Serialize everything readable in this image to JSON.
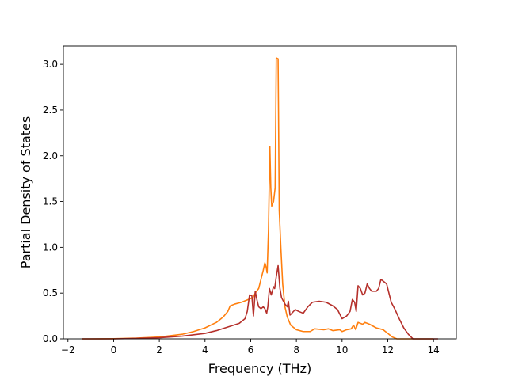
{
  "chart_data": {
    "type": "line",
    "title": "",
    "xlabel": "Frequency (THz)",
    "ylabel": "Partial Density of States",
    "xlim": [
      -2.2,
      15.0
    ],
    "ylim": [
      0.0,
      3.2
    ],
    "xticks": [
      -2,
      0,
      2,
      4,
      6,
      8,
      10,
      12,
      14
    ],
    "yticks": [
      0.0,
      0.5,
      1.0,
      1.5,
      2.0,
      2.5,
      3.0
    ],
    "xtick_labels": [
      "−2",
      "0",
      "2",
      "4",
      "6",
      "8",
      "10",
      "12",
      "14"
    ],
    "ytick_labels": [
      "0.0",
      "0.5",
      "1.0",
      "1.5",
      "2.0",
      "2.5",
      "3.0"
    ],
    "grid": false,
    "legend": "none",
    "series": [
      {
        "color": "#ff7f0e",
        "points": [
          [
            -1.4,
            0.0
          ],
          [
            -1.0,
            0.0
          ],
          [
            0.0,
            0.002
          ],
          [
            1.0,
            0.008
          ],
          [
            2.0,
            0.02
          ],
          [
            3.0,
            0.05
          ],
          [
            3.5,
            0.08
          ],
          [
            4.0,
            0.12
          ],
          [
            4.5,
            0.18
          ],
          [
            4.8,
            0.24
          ],
          [
            5.0,
            0.3
          ],
          [
            5.1,
            0.36
          ],
          [
            5.3,
            0.38
          ],
          [
            5.6,
            0.4
          ],
          [
            5.9,
            0.43
          ],
          [
            6.0,
            0.44
          ],
          [
            6.1,
            0.45
          ],
          [
            6.2,
            0.5
          ],
          [
            6.35,
            0.55
          ],
          [
            6.45,
            0.65
          ],
          [
            6.55,
            0.75
          ],
          [
            6.62,
            0.83
          ],
          [
            6.68,
            0.78
          ],
          [
            6.72,
            0.72
          ],
          [
            6.78,
            1.2
          ],
          [
            6.84,
            2.1
          ],
          [
            6.88,
            1.65
          ],
          [
            6.92,
            1.45
          ],
          [
            7.0,
            1.5
          ],
          [
            7.07,
            1.65
          ],
          [
            7.12,
            3.07
          ],
          [
            7.2,
            3.06
          ],
          [
            7.25,
            1.4
          ],
          [
            7.32,
            1.0
          ],
          [
            7.4,
            0.6
          ],
          [
            7.5,
            0.35
          ],
          [
            7.6,
            0.24
          ],
          [
            7.75,
            0.15
          ],
          [
            8.0,
            0.1
          ],
          [
            8.3,
            0.08
          ],
          [
            8.6,
            0.08
          ],
          [
            8.8,
            0.11
          ],
          [
            9.2,
            0.1
          ],
          [
            9.4,
            0.11
          ],
          [
            9.6,
            0.09
          ],
          [
            9.9,
            0.1
          ],
          [
            10.0,
            0.08
          ],
          [
            10.2,
            0.1
          ],
          [
            10.4,
            0.11
          ],
          [
            10.5,
            0.15
          ],
          [
            10.6,
            0.1
          ],
          [
            10.7,
            0.18
          ],
          [
            10.9,
            0.16
          ],
          [
            11.0,
            0.18
          ],
          [
            11.2,
            0.16
          ],
          [
            11.5,
            0.12
          ],
          [
            11.8,
            0.1
          ],
          [
            12.0,
            0.06
          ],
          [
            12.2,
            0.02
          ],
          [
            12.4,
            0.0
          ],
          [
            13.0,
            0.0
          ],
          [
            14.0,
            0.0
          ]
        ]
      },
      {
        "color": "#b5302b",
        "points": [
          [
            -1.4,
            0.0
          ],
          [
            -1.0,
            0.0
          ],
          [
            0.0,
            0.0
          ],
          [
            1.0,
            0.005
          ],
          [
            2.0,
            0.012
          ],
          [
            3.0,
            0.03
          ],
          [
            4.0,
            0.06
          ],
          [
            4.5,
            0.09
          ],
          [
            5.0,
            0.13
          ],
          [
            5.5,
            0.17
          ],
          [
            5.75,
            0.22
          ],
          [
            5.85,
            0.3
          ],
          [
            5.95,
            0.48
          ],
          [
            6.05,
            0.47
          ],
          [
            6.12,
            0.25
          ],
          [
            6.2,
            0.52
          ],
          [
            6.28,
            0.42
          ],
          [
            6.35,
            0.35
          ],
          [
            6.45,
            0.33
          ],
          [
            6.55,
            0.35
          ],
          [
            6.62,
            0.33
          ],
          [
            6.7,
            0.28
          ],
          [
            6.75,
            0.35
          ],
          [
            6.82,
            0.55
          ],
          [
            6.9,
            0.48
          ],
          [
            7.0,
            0.57
          ],
          [
            7.05,
            0.55
          ],
          [
            7.12,
            0.68
          ],
          [
            7.2,
            0.8
          ],
          [
            7.28,
            0.55
          ],
          [
            7.35,
            0.45
          ],
          [
            7.5,
            0.38
          ],
          [
            7.6,
            0.35
          ],
          [
            7.65,
            0.41
          ],
          [
            7.72,
            0.26
          ],
          [
            7.8,
            0.28
          ],
          [
            7.95,
            0.32
          ],
          [
            8.1,
            0.3
          ],
          [
            8.3,
            0.28
          ],
          [
            8.5,
            0.35
          ],
          [
            8.7,
            0.4
          ],
          [
            9.0,
            0.41
          ],
          [
            9.3,
            0.4
          ],
          [
            9.6,
            0.36
          ],
          [
            9.8,
            0.32
          ],
          [
            10.0,
            0.22
          ],
          [
            10.2,
            0.25
          ],
          [
            10.35,
            0.3
          ],
          [
            10.45,
            0.43
          ],
          [
            10.55,
            0.4
          ],
          [
            10.62,
            0.3
          ],
          [
            10.7,
            0.58
          ],
          [
            10.8,
            0.55
          ],
          [
            10.9,
            0.48
          ],
          [
            11.0,
            0.5
          ],
          [
            11.1,
            0.6
          ],
          [
            11.2,
            0.55
          ],
          [
            11.3,
            0.52
          ],
          [
            11.5,
            0.52
          ],
          [
            11.6,
            0.55
          ],
          [
            11.7,
            0.65
          ],
          [
            11.85,
            0.62
          ],
          [
            11.95,
            0.6
          ],
          [
            12.05,
            0.5
          ],
          [
            12.15,
            0.4
          ],
          [
            12.3,
            0.33
          ],
          [
            12.5,
            0.22
          ],
          [
            12.7,
            0.12
          ],
          [
            12.9,
            0.05
          ],
          [
            13.1,
            0.0
          ],
          [
            13.5,
            0.0
          ],
          [
            14.0,
            0.0
          ],
          [
            14.2,
            0.0
          ]
        ]
      }
    ]
  }
}
